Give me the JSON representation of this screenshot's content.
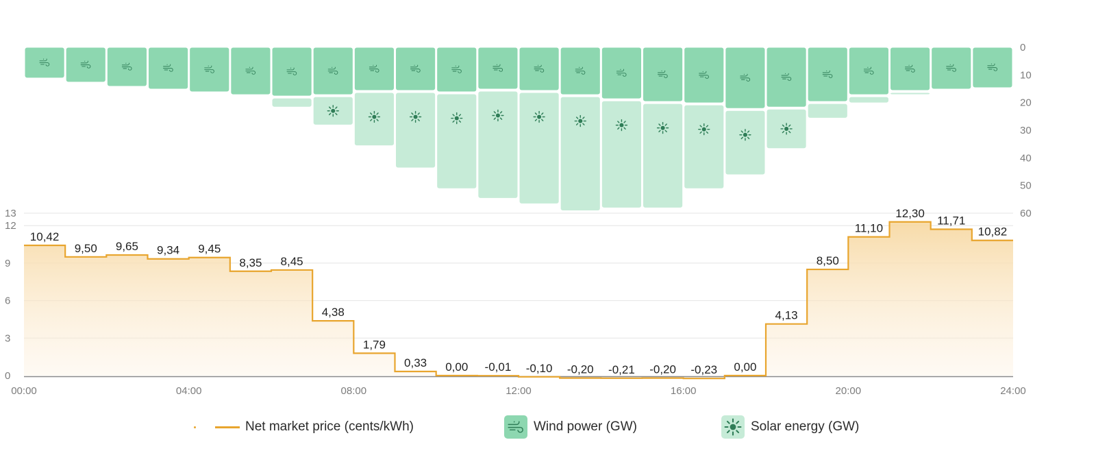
{
  "chart_data": {
    "type": "bar",
    "x_tick_labels": [
      "00:00",
      "04:00",
      "08:00",
      "12:00",
      "16:00",
      "20:00",
      "24:00"
    ],
    "hours": [
      "00:00",
      "01:00",
      "02:00",
      "03:00",
      "04:00",
      "05:00",
      "06:00",
      "07:00",
      "08:00",
      "09:00",
      "10:00",
      "11:00",
      "12:00",
      "13:00",
      "14:00",
      "15:00",
      "16:00",
      "17:00",
      "18:00",
      "19:00",
      "20:00",
      "21:00",
      "22:00",
      "23:00"
    ],
    "price": {
      "name": "Net market price (cents/kWh)",
      "type": "step-area",
      "values": [
        10.42,
        9.5,
        9.65,
        9.34,
        9.45,
        8.35,
        8.45,
        4.38,
        1.79,
        0.33,
        0.0,
        -0.01,
        -0.1,
        -0.2,
        -0.21,
        -0.2,
        -0.23,
        0.0,
        4.13,
        8.5,
        11.1,
        12.3,
        11.71,
        10.82
      ],
      "labels": [
        "10,42",
        "9,50",
        "9,65",
        "9,34",
        "9,45",
        "8,35",
        "8,45",
        "4,38",
        "1,79",
        "0,33",
        "0,00",
        "-0,01",
        "-0,10",
        "-0,20",
        "-0,21",
        "-0,20",
        "-0,23",
        "0,00",
        "4,13",
        "8,50",
        "11,10",
        "12,30",
        "11,71",
        "10,82"
      ],
      "y_ticks": [
        "0",
        "3",
        "6",
        "9",
        "12",
        "13"
      ],
      "ylim": [
        0,
        13
      ],
      "color": "#e8a52e"
    },
    "generation": {
      "axis_ticks": [
        "0",
        "10",
        "20",
        "30",
        "40",
        "50",
        "60"
      ],
      "ylim": [
        0,
        60
      ],
      "orientation": "downward",
      "wind": {
        "name": "Wind power (GW)",
        "color": "#8dd7b0",
        "values": [
          11,
          12.5,
          14,
          15,
          16,
          17,
          17.5,
          17,
          15.5,
          15.5,
          16,
          15,
          15.5,
          17,
          18.5,
          19.5,
          20,
          22,
          21.5,
          19.5,
          17,
          15.5,
          15,
          14.5
        ]
      },
      "solar": {
        "name": "Solar energy (GW)",
        "color": "#c6ebd7",
        "values": [
          0,
          0,
          0,
          0,
          0,
          0,
          4,
          11,
          20,
          28,
          35,
          39.5,
          41,
          42,
          39.5,
          38.5,
          31,
          24,
          15,
          6,
          3,
          0.5,
          0,
          0
        ]
      }
    },
    "legend_position": "bottom",
    "grid": true
  }
}
